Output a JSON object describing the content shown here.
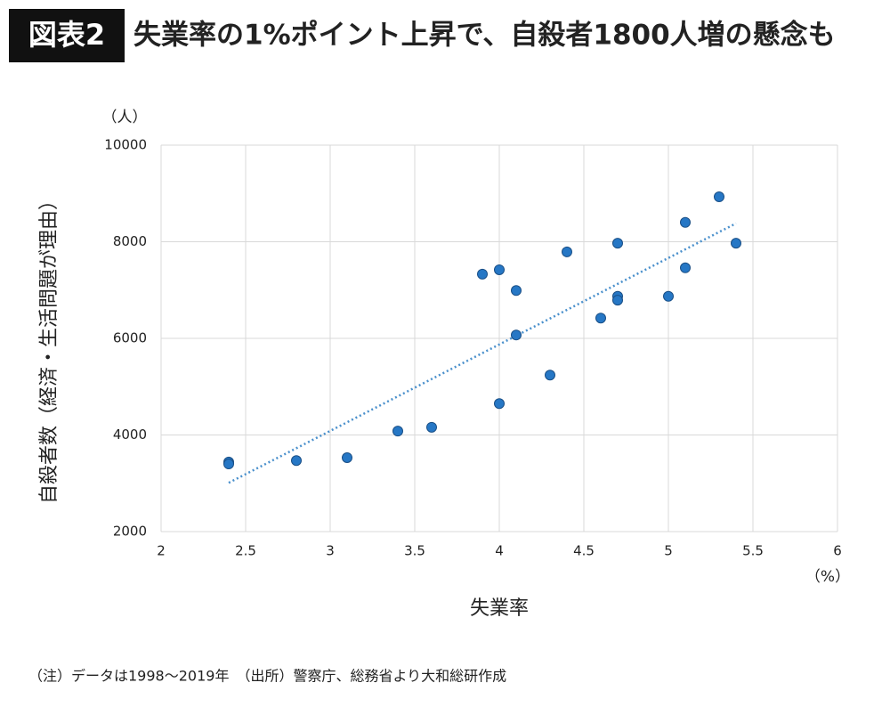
{
  "badge": "図表2",
  "chart_data": {
    "type": "scatter",
    "title": "失業率の1%ポイント上昇で、自殺者1800人増の懸念も",
    "x_label": "失業率",
    "x_unit": "（%）",
    "y_label": "自殺者数（経済・生活問題が理由）",
    "y_unit": "（人）",
    "series": [
      {
        "color": "#2677c5",
        "x": [
          2.4,
          2.4,
          2.8,
          3.1,
          3.4,
          3.6,
          3.9,
          4.0,
          4.0,
          4.1,
          4.1,
          4.3,
          4.4,
          4.6,
          4.7,
          4.7,
          4.7,
          5.0,
          5.1,
          5.1,
          5.3,
          5.4
        ],
        "values": [
          3440,
          3400,
          3470,
          3530,
          4080,
          4160,
          7330,
          7420,
          4650,
          6990,
          6070,
          5240,
          7790,
          6420,
          7970,
          6870,
          6790,
          6870,
          8400,
          7460,
          8930,
          7970
        ]
      }
    ],
    "trendline": {
      "color": "#4a90cc",
      "x": [
        2.4,
        5.4
      ],
      "values": [
        3010,
        8380
      ]
    },
    "xlim": [
      2,
      6
    ],
    "xticks": [
      2,
      2.5,
      3,
      3.5,
      4,
      4.5,
      5,
      5.5,
      6
    ],
    "ylim": [
      2000,
      10000
    ],
    "yticks": [
      2000,
      4000,
      6000,
      8000,
      10000
    ],
    "grid": true,
    "note": "（注）データは1998～2019年　（出所）警察庁、総務省より大和総研作成"
  }
}
